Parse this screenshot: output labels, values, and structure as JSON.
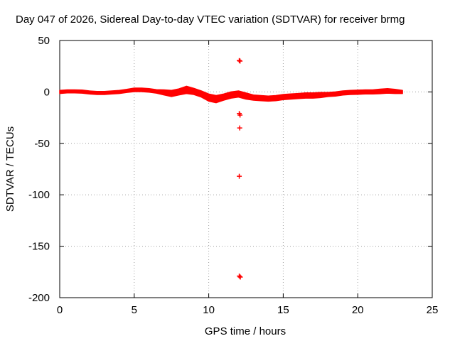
{
  "chart_data": {
    "type": "scatter",
    "title": "Day 047 of 2026, Sidereal Day-to-day VTEC variation (SDTVAR) for receiver brmg",
    "xlabel": "GPS time / hours",
    "ylabel": "SDTVAR / TECUs",
    "xlim": [
      0,
      25
    ],
    "ylim": [
      -200,
      50
    ],
    "xticks": [
      0,
      5,
      10,
      15,
      20,
      25
    ],
    "yticks": [
      50,
      0,
      -50,
      -100,
      -150,
      -200
    ],
    "xtick_labels": [
      "0",
      "5",
      "10",
      "15",
      "20",
      "25"
    ],
    "ytick_labels": [
      "50",
      "0",
      "-50",
      "-100",
      "-150",
      "-200"
    ],
    "grid": true,
    "marker": "+",
    "series_color": "#ff0000",
    "series": [
      {
        "name": "SDTVAR",
        "band_x": [
          0,
          0.5,
          1,
          1.5,
          2,
          2.5,
          3,
          3.5,
          4,
          4.5,
          5,
          5.5,
          6,
          6.5,
          7,
          7.5,
          8,
          8.5,
          9,
          9.5,
          10,
          10.5,
          11,
          11.5,
          12,
          12.5,
          13,
          13.5,
          14,
          14.5,
          15,
          15.5,
          16,
          16.5,
          17,
          17.5,
          18,
          18.5,
          19,
          19.5,
          20,
          20.5,
          21,
          21.5,
          22,
          22.5,
          23
        ],
        "band_center": [
          0,
          0.5,
          0.5,
          0.3,
          -0.5,
          -1,
          -1,
          -0.5,
          0,
          1,
          2,
          2,
          1.5,
          0.5,
          -0.5,
          -1.5,
          0,
          2,
          0.5,
          -2,
          -5.5,
          -7,
          -5,
          -3,
          -2,
          -4,
          -5.5,
          -6,
          -6.5,
          -6,
          -5,
          -4.5,
          -4,
          -3.5,
          -3.5,
          -3,
          -2.5,
          -2,
          -1,
          -0.5,
          -0.3,
          0,
          0,
          0.5,
          1,
          0.5,
          0
        ],
        "band_half_width": [
          1.5,
          1.5,
          1.5,
          1.5,
          1.5,
          1.5,
          1.5,
          1.5,
          1.5,
          1.5,
          1.7,
          1.7,
          1.7,
          1.7,
          2.5,
          3,
          3,
          3.5,
          3,
          3,
          3.5,
          3.5,
          3,
          3,
          3,
          3,
          2.5,
          2.5,
          2.5,
          2.5,
          2.5,
          2.5,
          2.5,
          2.5,
          2.5,
          2.5,
          2,
          2,
          2,
          2,
          2,
          2,
          2,
          2.2,
          2.2,
          2,
          1.5
        ],
        "outliers": [
          {
            "x": 12.05,
            "y": 30.5
          },
          {
            "x": 12.1,
            "y": 30
          },
          {
            "x": 12.05,
            "y": -21
          },
          {
            "x": 12.1,
            "y": -22.5
          },
          {
            "x": 12.08,
            "y": -35
          },
          {
            "x": 12.05,
            "y": -82
          },
          {
            "x": 12.05,
            "y": -179
          },
          {
            "x": 12.12,
            "y": -180
          }
        ]
      }
    ]
  }
}
